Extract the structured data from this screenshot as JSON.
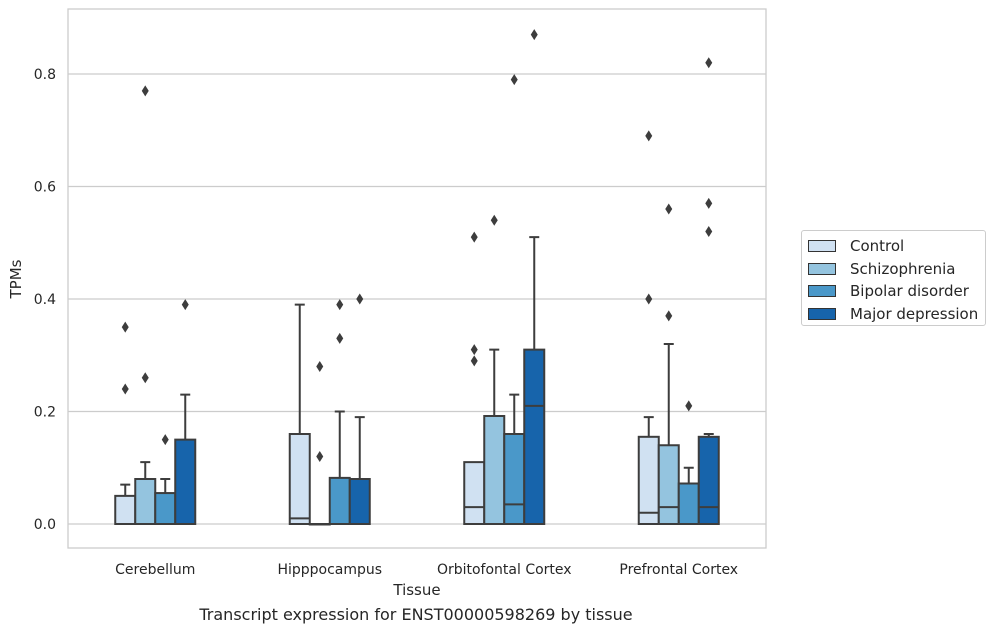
{
  "caption": "Transcript expression for ENST00000598269 by tissue",
  "chart_data": {
    "type": "box",
    "title": "",
    "xlabel": "Tissue",
    "ylabel": "TPMs",
    "ylim": [
      -0.042,
      0.915
    ],
    "yticks": [
      "0.0",
      "0.2",
      "0.4",
      "0.6",
      "0.8"
    ],
    "ytick_values": [
      0.0,
      0.2,
      0.4,
      0.6,
      0.8
    ],
    "grid": "horizontal",
    "legend_position": "right",
    "categories": [
      "Cerebellum",
      "Hipppocampus",
      "Orbitofontal Cortex",
      "Prefrontal Cortex"
    ],
    "series": [
      {
        "name": "Control",
        "color": "#d0e1f2",
        "boxes": [
          {
            "q1": 0.0,
            "median": 0.0,
            "q3": 0.05,
            "whisker_low": 0.0,
            "whisker_high": 0.07,
            "outliers": [
              0.24,
              0.35
            ]
          },
          {
            "q1": 0.0,
            "median": 0.01,
            "q3": 0.16,
            "whisker_low": 0.0,
            "whisker_high": 0.39,
            "outliers": []
          },
          {
            "q1": 0.0,
            "median": 0.03,
            "q3": 0.11,
            "whisker_low": 0.0,
            "whisker_high": 0.11,
            "outliers": [
              0.29,
              0.31,
              0.51
            ]
          },
          {
            "q1": 0.0,
            "median": 0.02,
            "q3": 0.155,
            "whisker_low": 0.0,
            "whisker_high": 0.19,
            "outliers": [
              0.4,
              0.69
            ]
          }
        ]
      },
      {
        "name": "Schizophrenia",
        "color": "#94c4df",
        "boxes": [
          {
            "q1": 0.0,
            "median": 0.0,
            "q3": 0.08,
            "whisker_low": 0.0,
            "whisker_high": 0.11,
            "outliers": [
              0.26,
              0.77
            ]
          },
          {
            "q1": 0.0,
            "median": 0.0,
            "q3": 0.0,
            "whisker_low": 0.0,
            "whisker_high": 0.0,
            "outliers": [
              0.12,
              0.28
            ]
          },
          {
            "q1": 0.0,
            "median": 0.0,
            "q3": 0.192,
            "whisker_low": 0.0,
            "whisker_high": 0.31,
            "outliers": [
              0.54
            ]
          },
          {
            "q1": 0.0,
            "median": 0.03,
            "q3": 0.14,
            "whisker_low": 0.0,
            "whisker_high": 0.32,
            "outliers": [
              0.37,
              0.56
            ]
          }
        ]
      },
      {
        "name": "Bipolar disorder",
        "color": "#4a98c9",
        "boxes": [
          {
            "q1": 0.0,
            "median": 0.0,
            "q3": 0.055,
            "whisker_low": 0.0,
            "whisker_high": 0.08,
            "outliers": [
              0.15
            ]
          },
          {
            "q1": 0.0,
            "median": 0.0,
            "q3": 0.082,
            "whisker_low": 0.0,
            "whisker_high": 0.2,
            "outliers": [
              0.33,
              0.39
            ]
          },
          {
            "q1": 0.0,
            "median": 0.035,
            "q3": 0.16,
            "whisker_low": 0.0,
            "whisker_high": 0.23,
            "outliers": [
              0.79
            ]
          },
          {
            "q1": 0.0,
            "median": 0.0,
            "q3": 0.072,
            "whisker_low": 0.0,
            "whisker_high": 0.1,
            "outliers": [
              0.21
            ]
          }
        ]
      },
      {
        "name": "Major depression",
        "color": "#1764ab",
        "boxes": [
          {
            "q1": 0.0,
            "median": 0.0,
            "q3": 0.15,
            "whisker_low": 0.0,
            "whisker_high": 0.23,
            "outliers": [
              0.39
            ]
          },
          {
            "q1": 0.0,
            "median": 0.0,
            "q3": 0.08,
            "whisker_low": 0.0,
            "whisker_high": 0.19,
            "outliers": [
              0.4
            ]
          },
          {
            "q1": 0.0,
            "median": 0.21,
            "q3": 0.31,
            "whisker_low": 0.0,
            "whisker_high": 0.51,
            "outliers": [
              0.87
            ]
          },
          {
            "q1": 0.0,
            "median": 0.03,
            "q3": 0.155,
            "whisker_low": 0.0,
            "whisker_high": 0.16,
            "outliers": [
              0.52,
              0.57,
              0.82
            ]
          }
        ]
      }
    ]
  }
}
